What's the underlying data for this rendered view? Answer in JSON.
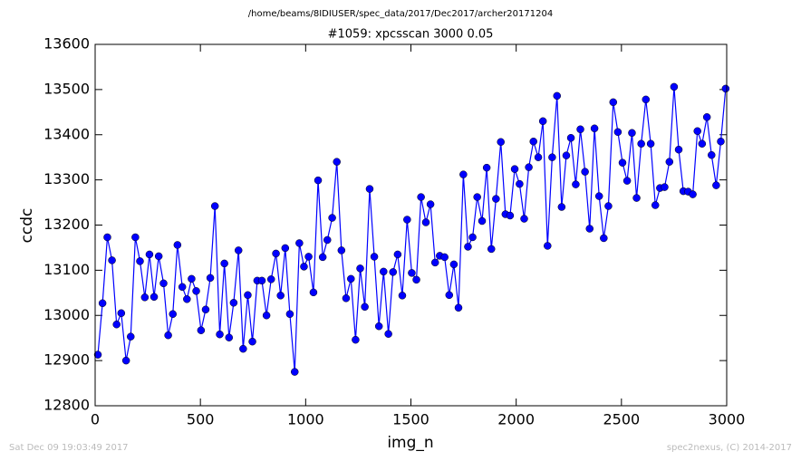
{
  "chart_data": {
    "type": "line",
    "suptitle": "/home/beams/8IDIUSER/spec_data/2017/Dec2017/archer20171204",
    "title": "#1059: xpcsscan 3000 0.05",
    "xlabel": "img_n",
    "ylabel": "ccdc",
    "footer_left": "Sat Dec 09 19:03:49 2017",
    "footer_right": "spec2nexus, (C) 2014-2017",
    "color": "#0000ff",
    "marker": "circle",
    "xlim": [
      0,
      3000
    ],
    "xticks": [
      0,
      500,
      1000,
      1500,
      2000,
      2500,
      3000
    ],
    "ylim": [
      12800,
      13600
    ],
    "yticks": [
      12800,
      12900,
      13000,
      13100,
      13200,
      13300,
      13400,
      13500,
      13600
    ],
    "x": [
      13,
      35,
      58,
      80,
      102,
      124,
      147,
      169,
      191,
      213,
      236,
      258,
      280,
      302,
      325,
      347,
      369,
      391,
      414,
      436,
      458,
      480,
      503,
      525,
      547,
      569,
      592,
      614,
      636,
      658,
      681,
      703,
      725,
      747,
      770,
      792,
      814,
      836,
      859,
      881,
      903,
      925,
      948,
      970,
      992,
      1014,
      1037,
      1059,
      1081,
      1103,
      1126,
      1148,
      1170,
      1192,
      1215,
      1237,
      1259,
      1281,
      1304,
      1326,
      1348,
      1370,
      1393,
      1415,
      1437,
      1459,
      1482,
      1504,
      1526,
      1548,
      1571,
      1593,
      1615,
      1637,
      1660,
      1682,
      1704,
      1726,
      1749,
      1771,
      1793,
      1815,
      1838,
      1860,
      1882,
      1904,
      1927,
      1949,
      1971,
      1993,
      2016,
      2038,
      2060,
      2082,
      2105,
      2127,
      2149,
      2171,
      2194,
      2216,
      2238,
      2260,
      2283,
      2305,
      2327,
      2349,
      2372,
      2394,
      2416,
      2438,
      2461,
      2483,
      2505,
      2527,
      2550,
      2572,
      2594,
      2616,
      2639,
      2661,
      2683,
      2705,
      2728,
      2750,
      2772,
      2794,
      2817,
      2839,
      2861,
      2883,
      2906,
      2928,
      2950,
      2972,
      2995
    ],
    "values": [
      12913,
      13027,
      13173,
      13122,
      12980,
      13005,
      12900,
      12953,
      13173,
      13120,
      13040,
      13135,
      13041,
      13131,
      13071,
      12956,
      13003,
      13156,
      13063,
      13036,
      13081,
      13054,
      12967,
      13013,
      13083,
      13242,
      12958,
      13115,
      12951,
      13028,
      13144,
      12926,
      13045,
      12942,
      13077,
      13077,
      13000,
      13080,
      13137,
      13044,
      13149,
      13003,
      12875,
      13160,
      13108,
      13130,
      13051,
      13299,
      13129,
      13167,
      13216,
      13340,
      13144,
      13038,
      13081,
      12946,
      13104,
      13019,
      13280,
      13130,
      12976,
      13097,
      12959,
      13096,
      13135,
      13044,
      13212,
      13094,
      13079,
      13262,
      13206,
      13246,
      13117,
      13132,
      13129,
      13045,
      13113,
      13017,
      13312,
      13152,
      13173,
      13262,
      13209,
      13327,
      13147,
      13258,
      13384,
      13224,
      13221,
      13324,
      13291,
      13214,
      13328,
      13385,
      13350,
      13430,
      13154,
      13350,
      13486,
      13240,
      13354,
      13393,
      13290,
      13412,
      13318,
      13192,
      13414,
      13264,
      13171,
      13242,
      13472,
      13406,
      13338,
      13298,
      13404,
      13260,
      13380,
      13478,
      13380,
      13244,
      13282,
      13284,
      13340,
      13506,
      13367,
      13275,
      13274,
      13268,
      13408,
      13380,
      13439,
      13355,
      13288,
      13385,
      13502
    ]
  }
}
